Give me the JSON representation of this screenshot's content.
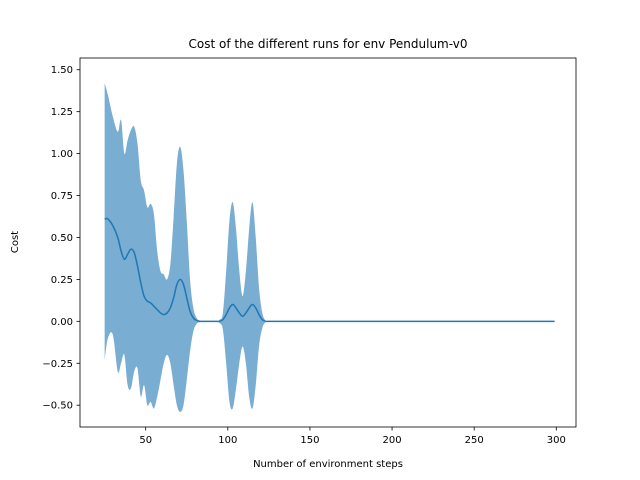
{
  "chart_data": {
    "type": "line",
    "title": "Cost of the different runs for env Pendulum-v0",
    "xlabel": "Number of environment steps",
    "ylabel": "Cost",
    "xlim": [
      10,
      312
    ],
    "ylim": [
      -0.63,
      1.57
    ],
    "xticks": [
      50,
      100,
      150,
      200,
      250,
      300
    ],
    "yticks": [
      -0.5,
      -0.25,
      0.0,
      0.25,
      0.5,
      0.75,
      1.0,
      1.25,
      1.5
    ],
    "xtick_labels": [
      "50",
      "100",
      "150",
      "200",
      "250",
      "300"
    ],
    "ytick_labels": [
      "−0.50",
      "−0.25",
      "0.00",
      "0.25",
      "0.50",
      "0.75",
      "1.00",
      "1.25",
      "1.50"
    ],
    "grid": false,
    "colors": {
      "line": "#1f77b4",
      "band": "#1f77b4",
      "band_opacity": 0.6
    },
    "series": [
      {
        "x": [
          25,
          27,
          30,
          33,
          35,
          37,
          39,
          41,
          43,
          45,
          47,
          49,
          51,
          53,
          55,
          57,
          59,
          61,
          63,
          65,
          67,
          69,
          71,
          73,
          75,
          77,
          79,
          81,
          83,
          85,
          87,
          89,
          91,
          93,
          95,
          97,
          99,
          101,
          103,
          105,
          107,
          109,
          111,
          113,
          115,
          117,
          119,
          121,
          123,
          125,
          130,
          140,
          160,
          200,
          250,
          299
        ],
        "mean": [
          0.61,
          0.61,
          0.57,
          0.5,
          0.42,
          0.37,
          0.4,
          0.43,
          0.41,
          0.33,
          0.23,
          0.15,
          0.12,
          0.11,
          0.09,
          0.07,
          0.05,
          0.04,
          0.05,
          0.08,
          0.14,
          0.22,
          0.25,
          0.22,
          0.14,
          0.06,
          0.02,
          0.005,
          0.0,
          0.0,
          0.0,
          0.0,
          0.0,
          0.0,
          0.0,
          0.01,
          0.04,
          0.08,
          0.1,
          0.08,
          0.05,
          0.03,
          0.05,
          0.08,
          0.1,
          0.08,
          0.04,
          0.01,
          0.0,
          0.0,
          0.0,
          0.0,
          0.0,
          0.0,
          0.0,
          0.0
        ],
        "upper": [
          1.42,
          1.35,
          1.22,
          1.13,
          1.2,
          1.0,
          1.08,
          1.14,
          1.16,
          1.06,
          0.84,
          0.78,
          0.68,
          0.7,
          0.64,
          0.42,
          0.3,
          0.28,
          0.25,
          0.34,
          0.62,
          0.94,
          1.04,
          0.9,
          0.6,
          0.25,
          0.08,
          0.02,
          0.005,
          0.0,
          0.0,
          0.0,
          0.0,
          0.0,
          0.01,
          0.05,
          0.3,
          0.6,
          0.71,
          0.55,
          0.3,
          0.15,
          0.3,
          0.55,
          0.71,
          0.5,
          0.2,
          0.05,
          0.005,
          0.0,
          0.0,
          0.0,
          0.0,
          0.0,
          0.0,
          0.0
        ],
        "lower": [
          -0.23,
          -0.1,
          -0.08,
          -0.3,
          -0.25,
          -0.2,
          -0.38,
          -0.4,
          -0.3,
          -0.28,
          -0.45,
          -0.38,
          -0.5,
          -0.48,
          -0.52,
          -0.45,
          -0.35,
          -0.25,
          -0.2,
          -0.25,
          -0.38,
          -0.5,
          -0.54,
          -0.5,
          -0.35,
          -0.18,
          -0.06,
          -0.015,
          -0.005,
          0.0,
          0.0,
          0.0,
          0.0,
          0.0,
          -0.01,
          -0.05,
          -0.25,
          -0.48,
          -0.52,
          -0.4,
          -0.25,
          -0.15,
          -0.25,
          -0.45,
          -0.52,
          -0.38,
          -0.15,
          -0.04,
          -0.005,
          0.0,
          0.0,
          0.0,
          0.0,
          0.0,
          0.0,
          0.0
        ]
      }
    ]
  }
}
